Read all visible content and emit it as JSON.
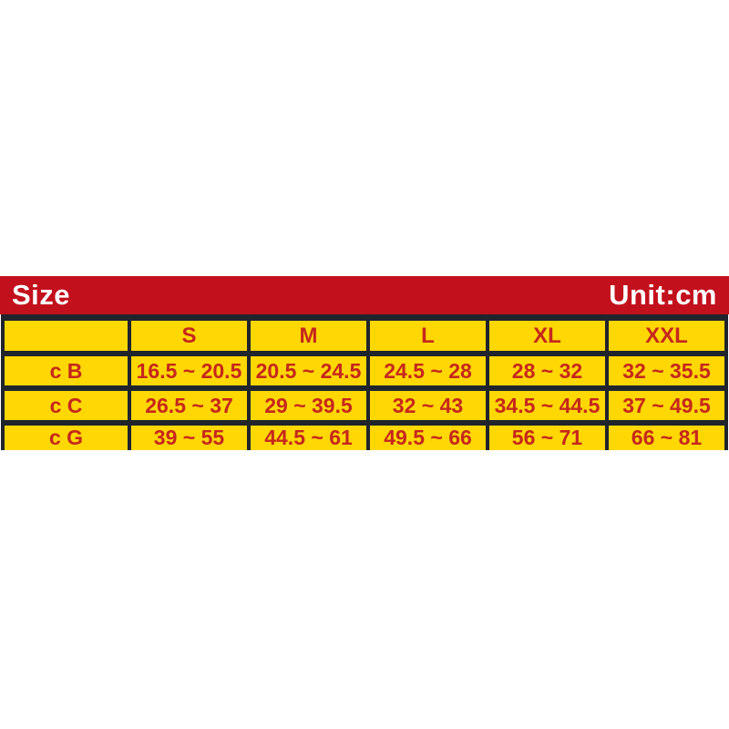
{
  "header": {
    "title": "Size",
    "unit_label": "Unit:cm"
  },
  "table": {
    "columns": [
      "",
      "S",
      "M",
      "L",
      "XL",
      "XXL"
    ],
    "rows": [
      {
        "label": "c B",
        "values": [
          "16.5 ~ 20.5",
          "20.5 ~ 24.5",
          "24.5 ~ 28",
          "28 ~ 32",
          "32 ~ 35.5"
        ]
      },
      {
        "label": "c C",
        "values": [
          "26.5 ~ 37",
          "29 ~ 39.5",
          "32 ~ 43",
          "34.5 ~ 44.5",
          "37 ~ 49.5"
        ]
      },
      {
        "label": "c G",
        "values": [
          "39 ~ 55",
          "44.5 ~ 61",
          "49.5 ~ 66",
          "56 ~ 71",
          "66 ~ 81"
        ]
      }
    ]
  },
  "chart_data": {
    "type": "table",
    "title": "Size",
    "unit": "cm",
    "columns": [
      "S",
      "M",
      "L",
      "XL",
      "XXL"
    ],
    "rows": [
      {
        "label": "c B",
        "values": [
          "16.5 ~ 20.5",
          "20.5 ~ 24.5",
          "24.5 ~ 28",
          "28 ~ 32",
          "32 ~ 35.5"
        ]
      },
      {
        "label": "c C",
        "values": [
          "26.5 ~ 37",
          "29 ~ 39.5",
          "32 ~ 43",
          "34.5 ~ 44.5",
          "37 ~ 49.5"
        ]
      },
      {
        "label": "c G",
        "values": [
          "39 ~ 55",
          "44.5 ~ 61",
          "49.5 ~ 66",
          "56 ~ 71",
          "66 ~ 81"
        ]
      }
    ]
  },
  "colors": {
    "titlebar_red": "#c2101c",
    "cell_yellow": "#ffd703",
    "cell_text_red": "#c5271d",
    "border_dark": "#20242c",
    "title_text_white": "#ffffff",
    "page_background": "#ffffff"
  }
}
